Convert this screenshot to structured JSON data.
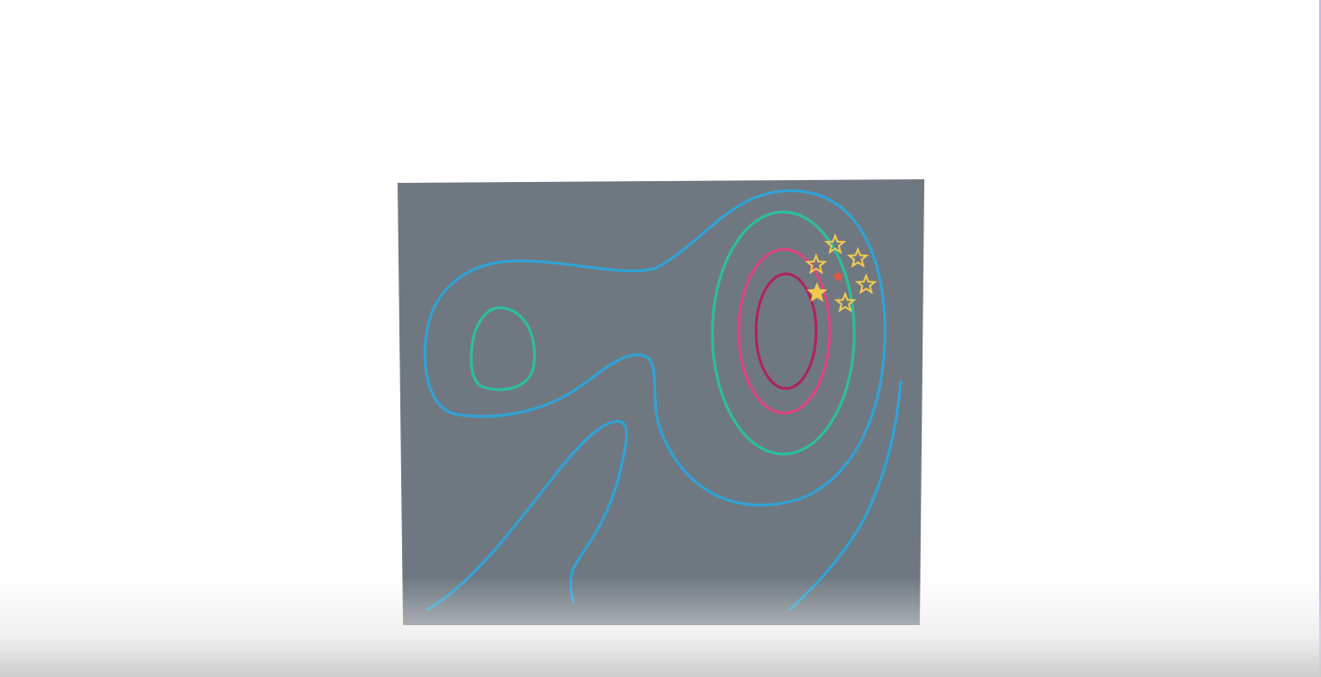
{
  "diagram": {
    "panel_color": "#6f7881",
    "colors": {
      "outer_contour": "#2ea3d8",
      "mid_contour": "#2bbf9f",
      "inner_contour": "#e0457e",
      "core_contour": "#b0235a",
      "candidate_star": "#f2c94c",
      "best_star": "#f2c94c",
      "center_star": "#e8563f"
    },
    "icons": {
      "candidate": "star-outline-icon",
      "best": "star-filled-icon",
      "center": "star-small-icon"
    },
    "candidate_count": 6
  }
}
